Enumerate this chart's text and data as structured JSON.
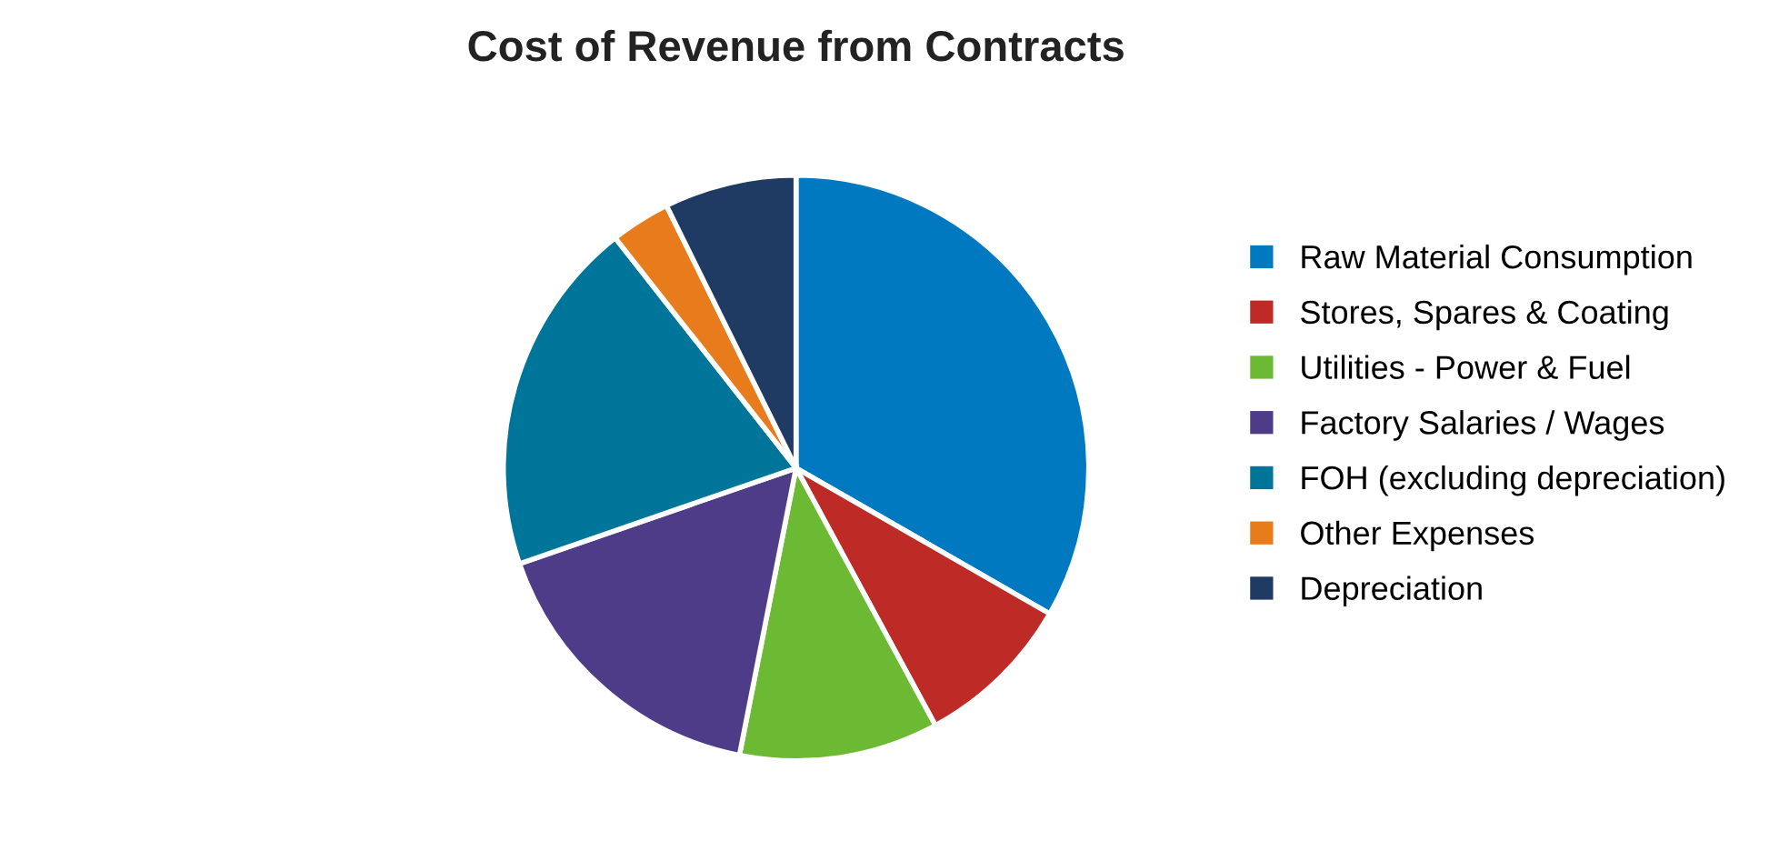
{
  "chart_data": {
    "type": "pie",
    "title": "Cost of Revenue from Contracts",
    "categories": [
      "Raw Material Consumption",
      "Stores, Spares & Coating",
      "Utilities - Power & Fuel",
      "Factory Salaries / Wages",
      "FOH (excluding depreciation)",
      "Other Expenses",
      "Depreciation"
    ],
    "values": [
      33.3,
      8.8,
      11.0,
      16.6,
      19.7,
      3.3,
      7.3
    ],
    "colors": [
      "#0079c1",
      "#be2a25",
      "#6cb933",
      "#4e3c89",
      "#00759a",
      "#e87c1d",
      "#1f3a63"
    ],
    "legend": "right"
  }
}
